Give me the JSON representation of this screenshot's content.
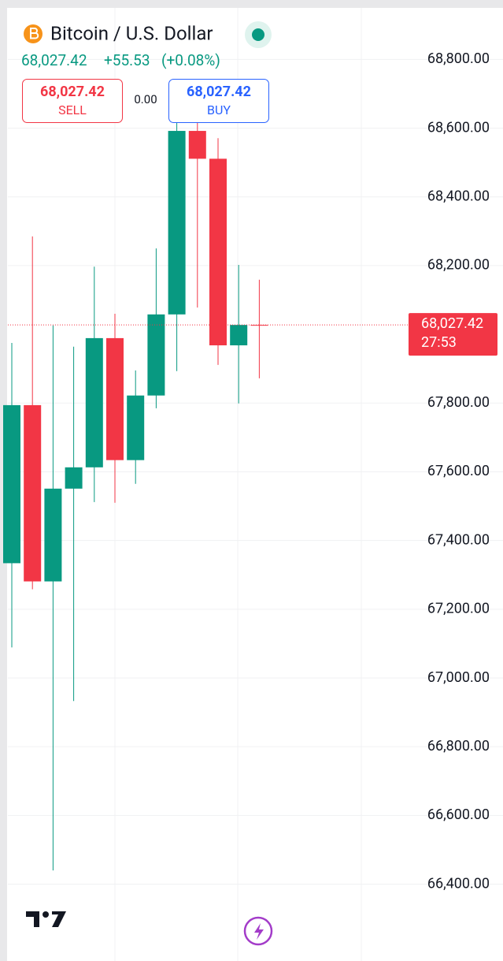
{
  "chart_data": {
    "type": "candlestick",
    "title": "Bitcoin / U.S. Dollar",
    "last_price": "68,027.42",
    "change": "+55.53",
    "change_percent": "(+0.08%)",
    "sell_price": "68,027.42",
    "sell_label": "SELL",
    "spread": "0.00",
    "buy_price": "68,027.42",
    "buy_label": "BUY",
    "current_price": {
      "value": 68027.42,
      "label": "68,027.42"
    },
    "countdown": "27:53",
    "up_color": "#089981",
    "down_color": "#f23645",
    "categories": [
      null,
      null,
      null,
      null,
      null,
      null,
      null,
      null,
      null,
      null,
      null,
      null,
      null
    ],
    "series": [
      {
        "open": [
          67334,
          67794,
          67281,
          67551,
          67613,
          67989,
          67634,
          67822,
          68058,
          68592,
          68511,
          67968,
          68027.42
        ],
        "high": [
          67975,
          68285,
          68026,
          67964,
          68197,
          68060,
          67895,
          68250,
          68650,
          68650,
          68571,
          68202,
          68159
        ],
        "low": [
          67089,
          67258,
          66440,
          66933,
          67512,
          67510,
          67565,
          67785,
          67893,
          68078,
          67911,
          67799,
          67872
        ],
        "close": [
          67794,
          67281,
          67551,
          67613,
          67989,
          67634,
          67822,
          68058,
          68592,
          68511,
          67968,
          68027.42,
          68027.42
        ]
      }
    ],
    "ylim": [
      66220,
      68950
    ],
    "yticks": [
      {
        "value": 66400,
        "label": "66,400.00"
      },
      {
        "value": 66600,
        "label": "66,600.00"
      },
      {
        "value": 66800,
        "label": "66,800.00"
      },
      {
        "value": 67000,
        "label": "67,000.00"
      },
      {
        "value": 67200,
        "label": "67,200.00"
      },
      {
        "value": 67400,
        "label": "67,400.00"
      },
      {
        "value": 67600,
        "label": "67,600.00"
      },
      {
        "value": 67800,
        "label": "67,800.00"
      },
      {
        "value": 68200,
        "label": "68,200.00"
      },
      {
        "value": 68400,
        "label": "68,400.00"
      },
      {
        "value": 68600,
        "label": "68,600.00"
      },
      {
        "value": 68800,
        "label": "68,800.00"
      }
    ],
    "grid": true
  }
}
